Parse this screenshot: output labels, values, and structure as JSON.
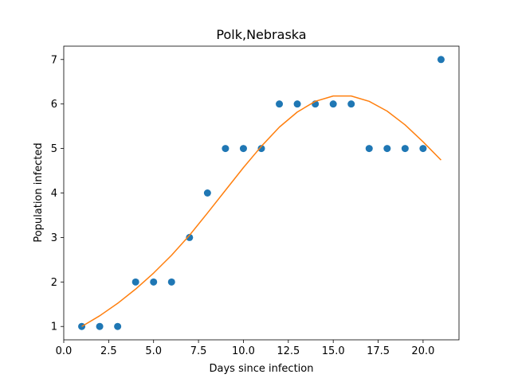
{
  "chart_data": {
    "type": "scatter",
    "title": "Polk,Nebraska",
    "xlabel": "Days since infection",
    "ylabel": "Population infected",
    "xlim": [
      0.0,
      22.0
    ],
    "ylim": [
      0.7,
      7.3
    ],
    "xticks": [
      0.0,
      2.5,
      5.0,
      7.5,
      10.0,
      12.5,
      15.0,
      17.5,
      20.0
    ],
    "xtick_labels": [
      "0.0",
      "2.5",
      "5.0",
      "7.5",
      "10.0",
      "12.5",
      "15.0",
      "17.5",
      "20.0"
    ],
    "yticks": [
      1,
      2,
      3,
      4,
      5,
      6,
      7
    ],
    "ytick_labels": [
      "1",
      "2",
      "3",
      "4",
      "5",
      "6",
      "7"
    ],
    "grid": false,
    "series": [
      {
        "kind": "scatter",
        "color": "#1f77b4",
        "x": [
          1,
          2,
          3,
          4,
          5,
          6,
          7,
          8,
          9,
          10,
          11,
          12,
          13,
          14,
          15,
          16,
          17,
          18,
          19,
          20,
          21
        ],
        "y": [
          1,
          1,
          1,
          2,
          2,
          2,
          3,
          4,
          5,
          5,
          5,
          6,
          6,
          6,
          6,
          6,
          5,
          5,
          5,
          5,
          7
        ]
      },
      {
        "kind": "line",
        "color": "#ff7f0e",
        "x": [
          1,
          2,
          3,
          4,
          5,
          6,
          7,
          8,
          9,
          10,
          11,
          12,
          13,
          14,
          15,
          16,
          17,
          18,
          19,
          20,
          21
        ],
        "y": [
          1.0,
          1.24,
          1.52,
          1.84,
          2.2,
          2.6,
          3.05,
          3.55,
          4.06,
          4.57,
          5.05,
          5.48,
          5.82,
          6.06,
          6.18,
          6.18,
          6.06,
          5.84,
          5.53,
          5.15,
          4.74
        ]
      }
    ]
  }
}
